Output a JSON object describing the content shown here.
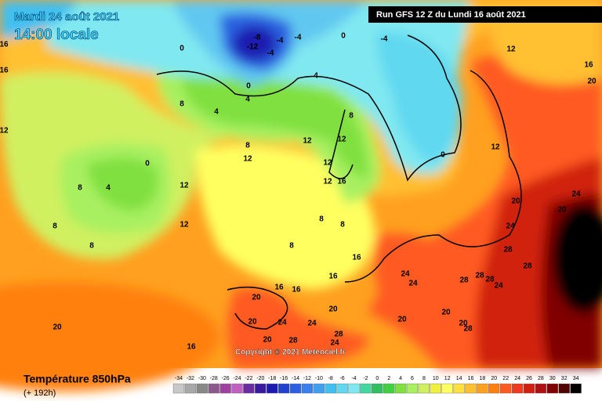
{
  "header": {
    "date": "Mardi 24 août 2021",
    "time": "14:00 locale",
    "run": "Run GFS 12 Z du Lundi 16 août 2021"
  },
  "copyright": "Copyright © 2021 Meteociel.fr",
  "footer": {
    "title": "Température 850hPa",
    "lead": "(+ 192h)"
  },
  "legend": {
    "ticks": [
      -34,
      -32,
      -30,
      -28,
      -26,
      -24,
      -22,
      -20,
      -18,
      -16,
      -14,
      -12,
      -10,
      -8,
      -6,
      -4,
      -2,
      0,
      2,
      4,
      6,
      8,
      10,
      12,
      14,
      16,
      18,
      20,
      22,
      24,
      26,
      28,
      30,
      32,
      34
    ],
    "colors": [
      "#c8c8c8",
      "#a8a8a8",
      "#888888",
      "#8c5a8c",
      "#a040a0",
      "#c060c0",
      "#6a2ca0",
      "#3a1aa0",
      "#1a1ab0",
      "#2040d0",
      "#2a60e0",
      "#3a80f0",
      "#40a0f0",
      "#40c0f0",
      "#60d8f0",
      "#80e8f0",
      "#40d8a0",
      "#30c060",
      "#40d040",
      "#80e040",
      "#a8f060",
      "#d0f060",
      "#f0f040",
      "#ffff60",
      "#ffe040",
      "#ffc030",
      "#ffa020",
      "#ff8010",
      "#ff5a20",
      "#f03a20",
      "#d02010",
      "#b01010",
      "#800000",
      "#500000",
      "#000000"
    ]
  },
  "map_labels": [
    -8,
    -12,
    -4,
    -4,
    -4,
    0,
    -4,
    0,
    0,
    4,
    4,
    4,
    8,
    12,
    20,
    16,
    16,
    16,
    12,
    0,
    4,
    8,
    8,
    8,
    12,
    12,
    12,
    8,
    12,
    8,
    12,
    12,
    12,
    16,
    8,
    8,
    8,
    16,
    16,
    16,
    16,
    20,
    24,
    24,
    24,
    20,
    20,
    24,
    20,
    28,
    28,
    28,
    24,
    28,
    28,
    24,
    20,
    20,
    24,
    0,
    12,
    20,
    16,
    20,
    28,
    24,
    28,
    20,
    20,
    28
  ]
}
